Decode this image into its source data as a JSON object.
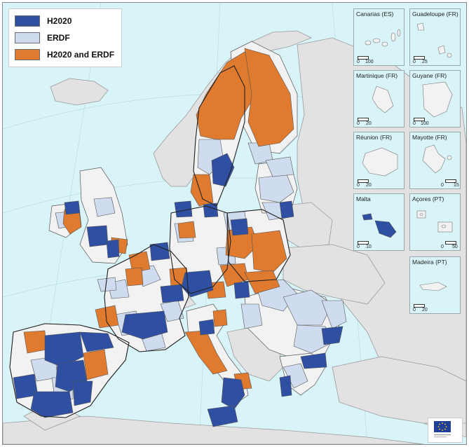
{
  "legend": {
    "items": [
      {
        "label": "H2020",
        "color": "#2f4fa2"
      },
      {
        "label": "ERDF",
        "color": "#cfdcf0"
      },
      {
        "label": "H2020 and ERDF",
        "color": "#e07a2e"
      }
    ]
  },
  "colors": {
    "sea": "#d8f4f8",
    "non_eu_land": "#e2e2e2",
    "no_data_region": "#f2f2f2",
    "border": "#333333"
  },
  "insets": [
    {
      "id": "canarias",
      "title": "Canarias (ES)",
      "scale_zero": "0",
      "scale_max": "100"
    },
    {
      "id": "guadeloupe",
      "title": "Guadeloupe (FR)",
      "scale_zero": "0",
      "scale_max": "25"
    },
    {
      "id": "martinique",
      "title": "Martinique (FR)",
      "scale_zero": "0",
      "scale_max": "20"
    },
    {
      "id": "guyane",
      "title": "Guyane (FR)",
      "scale_zero": "0",
      "scale_max": "100"
    },
    {
      "id": "reunion",
      "title": "Réunion (FR)",
      "scale_zero": "0",
      "scale_max": "20"
    },
    {
      "id": "mayotte",
      "title": "Mayotte (FR)",
      "scale_zero": "0",
      "scale_max": "15"
    },
    {
      "id": "malta",
      "title": "Malta",
      "scale_zero": "0",
      "scale_max": "10"
    },
    {
      "id": "acores",
      "title": "Açores (PT)",
      "scale_zero": "0",
      "scale_max": "50"
    },
    {
      "id": "madeira",
      "title": "Madeira (PT)",
      "scale_zero": "0",
      "scale_max": "20"
    }
  ],
  "logo": {
    "icon": "eu-flag-icon"
  }
}
